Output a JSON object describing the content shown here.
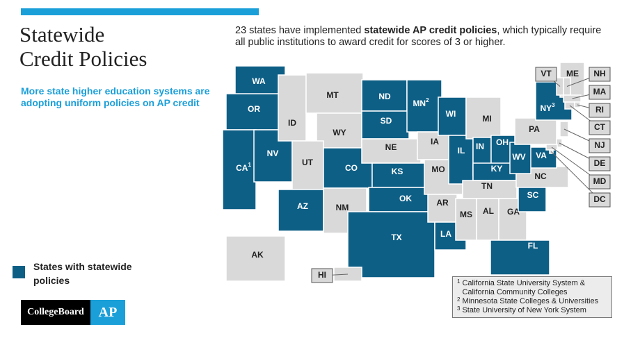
{
  "title": [
    "Statewide",
    "Credit Policies"
  ],
  "subtitle": "More state higher education systems are adopting uniform policies on AP credit",
  "intro": {
    "before": "23 states have implemented ",
    "bold": "statewide AP credit policies",
    "after": ", which typically require all public institutions to award credit for scores of 3 or higher."
  },
  "legend": "States with statewide policies",
  "logo": {
    "brand": "CollegeBoard",
    "program": "AP"
  },
  "map": {
    "highlight_color": "#0e5f86",
    "base_color": "#d9d9d9",
    "states": [
      {
        "label": "WA",
        "highlighted": true
      },
      {
        "label": "OR",
        "highlighted": true
      },
      {
        "label": "CA",
        "highlighted": true,
        "note": "1"
      },
      {
        "label": "NV",
        "highlighted": true
      },
      {
        "label": "ID",
        "highlighted": false
      },
      {
        "label": "MT",
        "highlighted": false
      },
      {
        "label": "WY",
        "highlighted": false
      },
      {
        "label": "UT",
        "highlighted": false
      },
      {
        "label": "AZ",
        "highlighted": true
      },
      {
        "label": "CO",
        "highlighted": true
      },
      {
        "label": "NM",
        "highlighted": false
      },
      {
        "label": "ND",
        "highlighted": true
      },
      {
        "label": "SD",
        "highlighted": true
      },
      {
        "label": "NE",
        "highlighted": false
      },
      {
        "label": "KS",
        "highlighted": true
      },
      {
        "label": "OK",
        "highlighted": true
      },
      {
        "label": "TX",
        "highlighted": true
      },
      {
        "label": "MN",
        "highlighted": true,
        "note": "2"
      },
      {
        "label": "IA",
        "highlighted": false
      },
      {
        "label": "MO",
        "highlighted": false
      },
      {
        "label": "AR",
        "highlighted": false
      },
      {
        "label": "LA",
        "highlighted": true
      },
      {
        "label": "WI",
        "highlighted": true
      },
      {
        "label": "IL",
        "highlighted": true
      },
      {
        "label": "MI",
        "highlighted": false
      },
      {
        "label": "IN",
        "highlighted": true
      },
      {
        "label": "OH",
        "highlighted": true
      },
      {
        "label": "KY",
        "highlighted": true
      },
      {
        "label": "TN",
        "highlighted": false
      },
      {
        "label": "MS",
        "highlighted": false
      },
      {
        "label": "AL",
        "highlighted": false
      },
      {
        "label": "GA",
        "highlighted": false
      },
      {
        "label": "FL",
        "highlighted": true
      },
      {
        "label": "SC",
        "highlighted": true
      },
      {
        "label": "NC",
        "highlighted": false
      },
      {
        "label": "VA",
        "highlighted": true
      },
      {
        "label": "WV",
        "highlighted": true
      },
      {
        "label": "PA",
        "highlighted": false
      },
      {
        "label": "NY",
        "highlighted": true,
        "note": "3"
      },
      {
        "label": "ME",
        "highlighted": false
      },
      {
        "label": "VT",
        "highlighted": false
      },
      {
        "label": "NH",
        "highlighted": false
      },
      {
        "label": "MA",
        "highlighted": false
      },
      {
        "label": "RI",
        "highlighted": false
      },
      {
        "label": "CT",
        "highlighted": false
      },
      {
        "label": "NJ",
        "highlighted": false
      },
      {
        "label": "DE",
        "highlighted": false
      },
      {
        "label": "MD",
        "highlighted": false
      },
      {
        "label": "DC",
        "highlighted": false
      },
      {
        "label": "AK",
        "highlighted": false
      },
      {
        "label": "HI",
        "highlighted": false
      }
    ]
  },
  "footnotes": [
    {
      "marker": "1",
      "text": "California State University System & California Community Colleges"
    },
    {
      "marker": "2",
      "text": "Minnesota State Colleges & Universities"
    },
    {
      "marker": "3",
      "text": "State University of New York System"
    }
  ]
}
